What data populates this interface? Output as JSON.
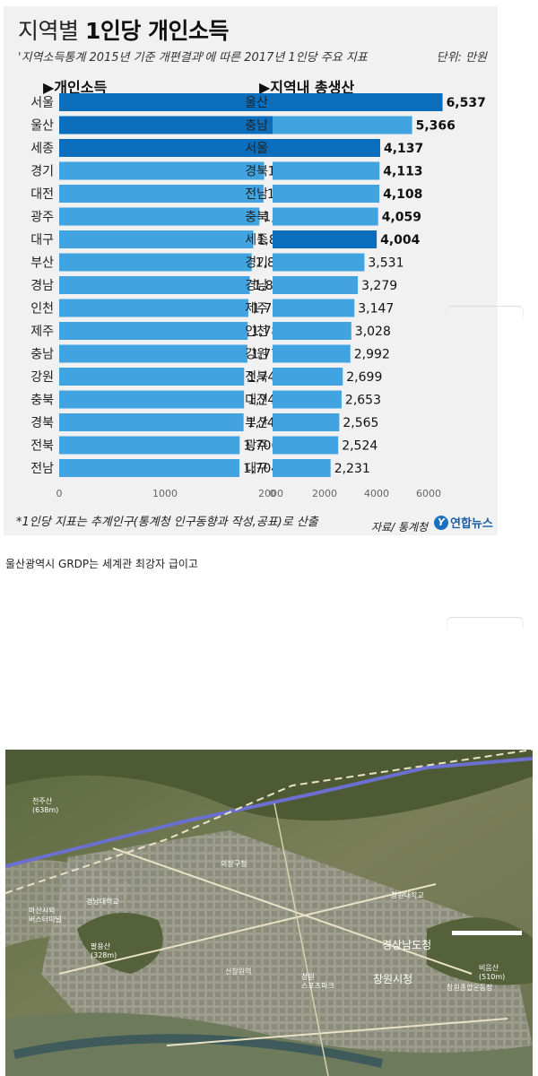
{
  "infographic": {
    "title_plain": "지역별 ",
    "title_bold": "1인당 개인소득",
    "subtitle": "'지역소득통계 2015년 기준 개편결과'에 따른 2017년 1인당 주요 지표",
    "unit": "단위: 만원",
    "footnote": "*1인당 지표는 추계인구(통계청 인구동향과 작성,공표)로 산출",
    "source": "자료/ 통계청",
    "logo_text": "연합뉴스",
    "logo_mark": "Y"
  },
  "chart_data": [
    {
      "type": "bar",
      "orientation": "horizontal",
      "title": "▶개인소득",
      "categories": [
        "서울",
        "울산",
        "세종",
        "경기",
        "대전",
        "광주",
        "대구",
        "부산",
        "경남",
        "인천",
        "제주",
        "충남",
        "강원",
        "충북",
        "경북",
        "전북",
        "전남"
      ],
      "values": [
        2224,
        2196,
        2140,
        1937,
        1931,
        1893,
        1835,
        1819,
        1801,
        1788,
        1782,
        1779,
        1748,
        1747,
        1743,
        1706,
        1704
      ],
      "value_labels": [
        "2,224",
        "2,196",
        "2,140",
        "1,937",
        "1,931",
        "1,893",
        "1,835",
        "1,819",
        "1,801",
        "1,788",
        "1,782",
        "1,779",
        "1,748",
        "1,747",
        "1,743",
        "1,706",
        "1,704"
      ],
      "highlight_top": 3,
      "xlim": [
        0,
        2300
      ],
      "xticks": [
        0,
        1000,
        2000
      ],
      "xtick_labels": [
        "0",
        "1000",
        "2000"
      ],
      "colors": {
        "highlight": "#0a6ebd",
        "normal": "#41a4e0"
      },
      "grid": false
    },
    {
      "type": "bar",
      "orientation": "horizontal",
      "title": "▶지역내 총생산",
      "categories": [
        "울산",
        "충남",
        "서울",
        "경북",
        "전남",
        "충북",
        "세종",
        "경기",
        "경남",
        "제주",
        "인천",
        "강원",
        "전북",
        "대전",
        "부산",
        "광주",
        "대구"
      ],
      "values": [
        6537,
        5366,
        4137,
        4113,
        4108,
        4059,
        4004,
        3531,
        3279,
        3147,
        3028,
        2992,
        2699,
        2653,
        2565,
        2524,
        2231
      ],
      "value_labels": [
        "6,537",
        "5,366",
        "4,137",
        "4,113",
        "4,108",
        "4,059",
        "4,004",
        "3,531",
        "3,279",
        "3,147",
        "3,028",
        "2,992",
        "2,699",
        "2,653",
        "2,565",
        "2,524",
        "2,231"
      ],
      "highlight_indices": [
        0,
        2,
        6
      ],
      "bold_label_indices": [
        0,
        1,
        2,
        3,
        4,
        5,
        6
      ],
      "xlim": [
        0,
        6700
      ],
      "xticks": [
        0,
        2000,
        4000,
        6000
      ],
      "xtick_labels": [
        "0",
        "2000",
        "4000",
        "6000"
      ],
      "colors": {
        "highlight": "#0a6ebd",
        "normal": "#41a4e0"
      },
      "grid": false
    }
  ],
  "post": {
    "caption": "울산광역시 GRDP는 세계관 최강자 급이고"
  },
  "map": {
    "labels": [
      {
        "id": "city-hall",
        "text": "창원시청"
      },
      {
        "id": "provincial-office",
        "text": "경상남도청"
      },
      {
        "id": "masan-terminal",
        "text": "마산시외\n버스터미널"
      },
      {
        "id": "mountain-cheonju",
        "text": "천주산\n(638m)"
      },
      {
        "id": "mountain-palyong",
        "text": "팔용산\n(328m)"
      },
      {
        "id": "mountain-biumsan",
        "text": "비음산\n(510m)"
      },
      {
        "id": "changwon-univ",
        "text": "창원대학교"
      },
      {
        "id": "uichang",
        "text": "의창구청"
      },
      {
        "id": "gyeongnam-univ",
        "text": "경남대학교"
      },
      {
        "id": "changwon-sports",
        "text": "창원\n스포츠파크"
      },
      {
        "id": "sinchang",
        "text": "신창원역"
      },
      {
        "id": "changwon-stadium",
        "text": "창원종합운동장"
      }
    ],
    "colors": {
      "land": "#6e7a52",
      "city": "#9a9a8e",
      "road": "#e8e2c6",
      "highway": "#6a6fd0"
    }
  }
}
